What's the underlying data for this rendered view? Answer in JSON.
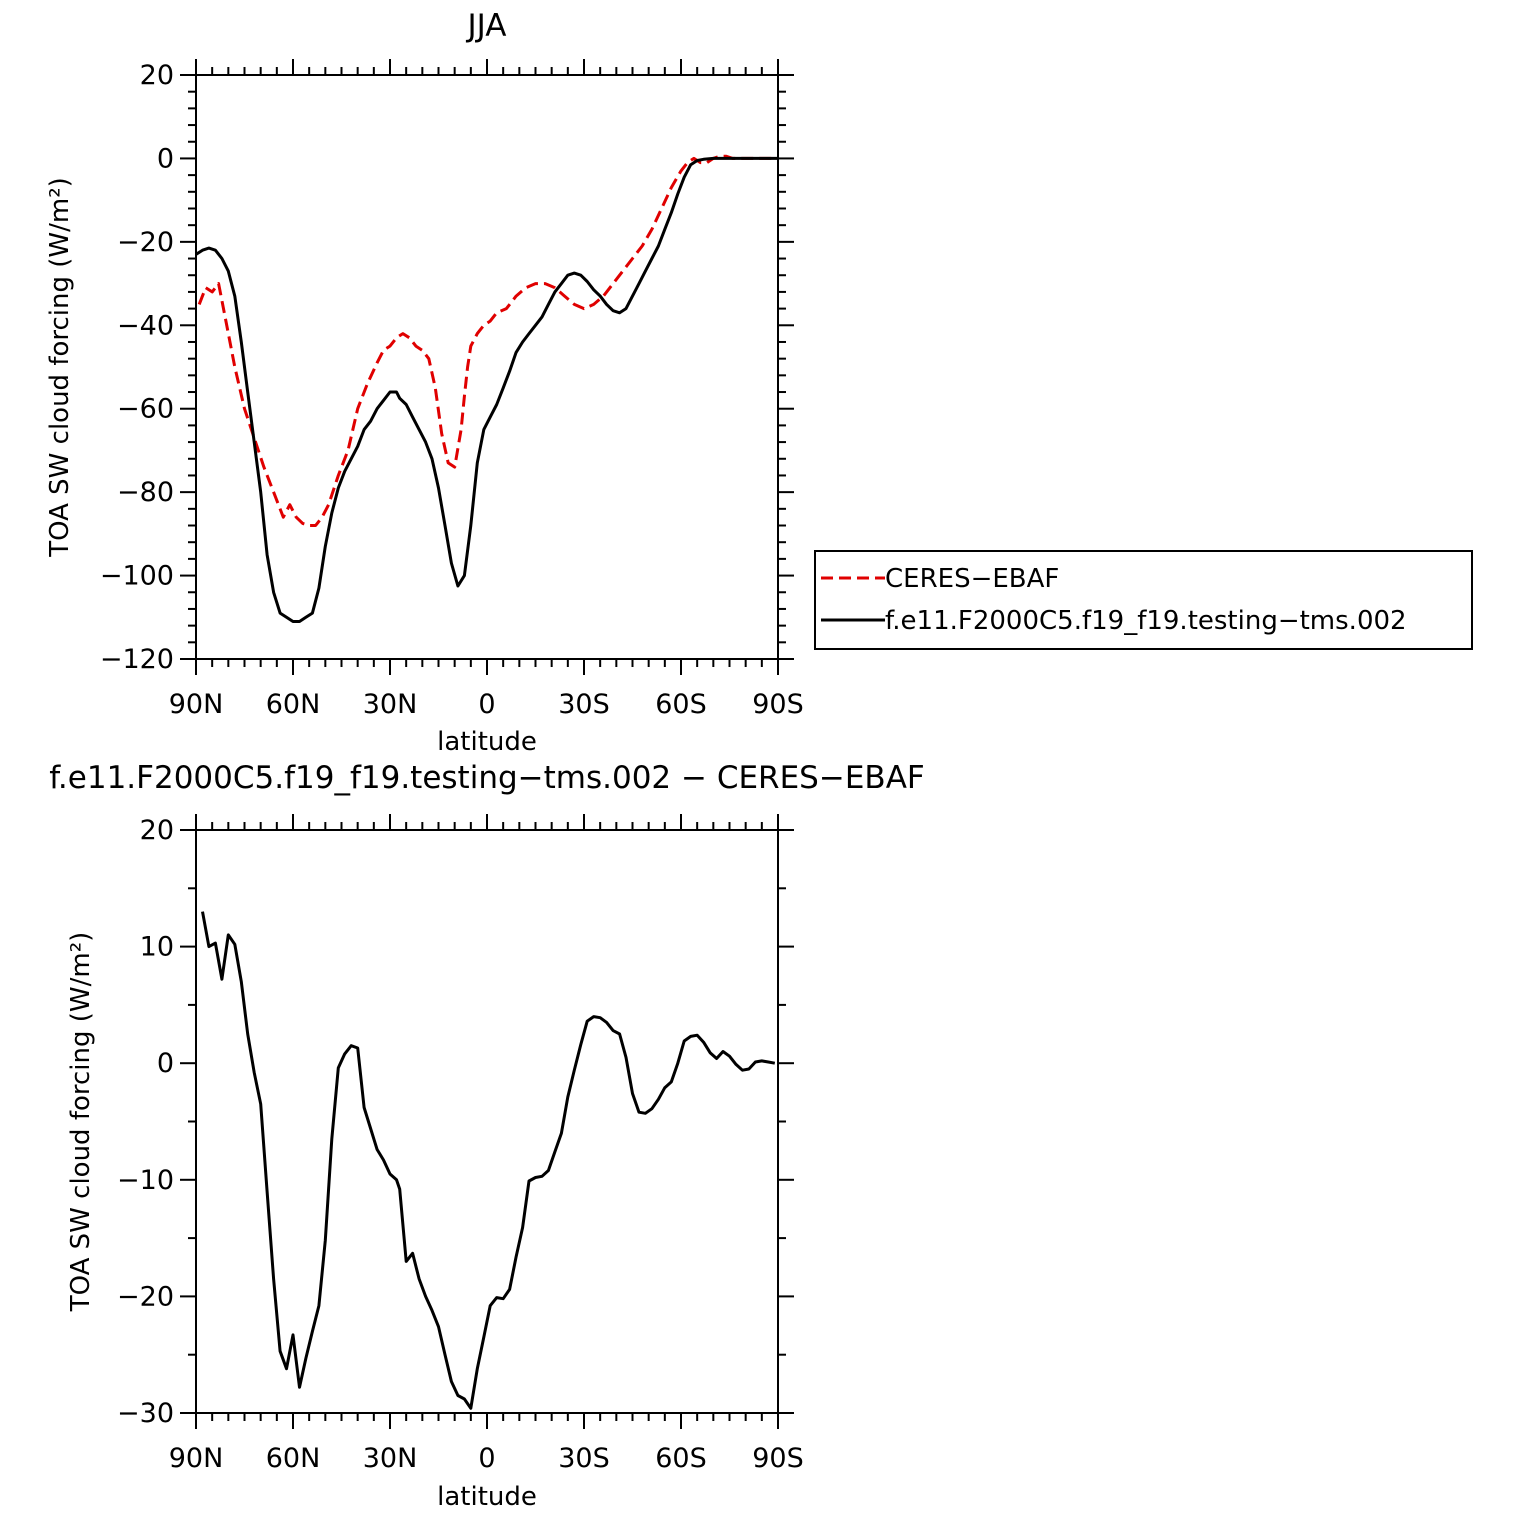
{
  "chart_data": [
    {
      "type": "line",
      "title": "JJA",
      "xlabel": "latitude",
      "ylabel": "TOA SW cloud forcing (W/m²)",
      "xlim": [
        90,
        -90
      ],
      "ylim": [
        -120,
        20
      ],
      "x_ticks": [
        90,
        60,
        30,
        0,
        -30,
        -60,
        -90
      ],
      "x_tick_labels": [
        "90N",
        "60N",
        "30N",
        "0",
        "30S",
        "60S",
        "90S"
      ],
      "y_ticks": [
        20,
        0,
        -20,
        -40,
        -60,
        -80,
        -100,
        -120
      ],
      "y_tick_labels": [
        "20",
        "0",
        "−20",
        "−40",
        "−60",
        "−80",
        "−100",
        "−120"
      ],
      "legend_position": "right",
      "series": [
        {
          "name": "CERES−EBAF",
          "color": "#e00000",
          "dash": "dashed",
          "x": [
            89,
            87,
            85,
            83,
            81,
            78,
            75,
            72,
            69,
            66,
            63,
            61,
            59,
            57,
            55,
            53,
            51,
            49,
            46,
            43,
            40,
            37,
            34,
            32,
            30,
            28,
            26,
            24,
            22,
            20,
            18,
            16,
            14,
            12,
            10,
            8,
            7,
            6,
            5,
            3,
            1,
            -1,
            -3,
            -6,
            -9,
            -12,
            -15,
            -18,
            -21,
            -24,
            -27,
            -30,
            -33,
            -36,
            -39,
            -42,
            -45,
            -48,
            -51,
            -54,
            -57,
            -60,
            -62,
            -64,
            -66,
            -68,
            -70,
            -72,
            -74,
            -76,
            -78,
            -80,
            -84,
            -88
          ],
          "y": [
            -35,
            -31,
            -32,
            -30,
            -38,
            -50,
            -60,
            -67,
            -74,
            -80,
            -86,
            -83,
            -86,
            -87.5,
            -88,
            -88,
            -86,
            -83,
            -76,
            -70,
            -60,
            -54,
            -49,
            -46,
            -45,
            -43,
            -42,
            -43,
            -45,
            -46,
            -48,
            -55,
            -66,
            -73,
            -74,
            -65,
            -57,
            -50,
            -45,
            -42,
            -40,
            -39,
            -37,
            -36,
            -33,
            -31,
            -30,
            -30,
            -31,
            -33,
            -35,
            -36,
            -35,
            -33,
            -30,
            -27,
            -24,
            -21,
            -17,
            -12,
            -7,
            -3,
            -1,
            0,
            -1,
            -1,
            0,
            0.5,
            0.5,
            0,
            0,
            0,
            0,
            0
          ]
        },
        {
          "name": "f.e11.F2000C5.f19_f19.testing−tms.002",
          "color": "#000000",
          "dash": "solid",
          "x": [
            90,
            88,
            86,
            84,
            82,
            80,
            78,
            76,
            74,
            72,
            70,
            68,
            66,
            64,
            62,
            60,
            58,
            56,
            54,
            52,
            50,
            48,
            46,
            44,
            42,
            40,
            38,
            36,
            34,
            32,
            30,
            28,
            27,
            25,
            23,
            21,
            19,
            17,
            15,
            13,
            11,
            9,
            7,
            5,
            3,
            1,
            -1,
            -3,
            -5,
            -7,
            -9,
            -11,
            -13,
            -15,
            -17,
            -19,
            -21,
            -23,
            -25,
            -27,
            -29,
            -31,
            -33,
            -35,
            -37,
            -39,
            -41,
            -43,
            -45,
            -47,
            -49,
            -51,
            -53,
            -55,
            -57,
            -59,
            -61,
            -63,
            -65,
            -67,
            -70,
            -75,
            -80,
            -85,
            -90
          ],
          "y": [
            -23,
            -22,
            -21.5,
            -22,
            -24,
            -27,
            -33,
            -44,
            -56,
            -68,
            -80,
            -95,
            -104,
            -109,
            -110,
            -111,
            -111,
            -110,
            -109,
            -103,
            -93,
            -85,
            -79,
            -75,
            -72,
            -69,
            -65,
            -63,
            -60,
            -58,
            -56,
            -56,
            -57.5,
            -59,
            -62,
            -65,
            -68,
            -72,
            -79,
            -88,
            -97,
            -102.5,
            -100,
            -88,
            -73,
            -65,
            -62,
            -59,
            -55,
            -51,
            -46.5,
            -44,
            -42,
            -40,
            -38,
            -35,
            -32,
            -30,
            -28,
            -27.5,
            -28,
            -29.5,
            -31.5,
            -33,
            -35,
            -36.5,
            -37,
            -36,
            -33,
            -30,
            -27,
            -24,
            -21,
            -17,
            -13,
            -8.5,
            -4.5,
            -1.5,
            -0.5,
            -0.2,
            0,
            0,
            0,
            0,
            0
          ]
        }
      ]
    },
    {
      "type": "line",
      "title": "f.e11.F2000C5.f19_f19.testing−tms.002 − CERES−EBAF",
      "xlabel": "latitude",
      "ylabel": "TOA SW cloud forcing (W/m²)",
      "xlim": [
        90,
        -90
      ],
      "ylim": [
        -30,
        20
      ],
      "x_ticks": [
        90,
        60,
        30,
        0,
        -30,
        -60,
        -90
      ],
      "x_tick_labels": [
        "90N",
        "60N",
        "30N",
        "0",
        "30S",
        "60S",
        "90S"
      ],
      "y_ticks": [
        20,
        10,
        0,
        -10,
        -20,
        -30
      ],
      "y_tick_labels": [
        "20",
        "10",
        "0",
        "−10",
        "−20",
        "−30"
      ],
      "series": [
        {
          "name": "",
          "color": "#000000",
          "dash": "solid",
          "x": [
            88,
            86,
            84,
            82,
            80,
            78,
            76,
            74,
            72,
            70,
            68,
            66,
            64,
            62,
            60,
            58,
            56,
            54,
            52,
            50,
            48,
            46,
            44,
            42,
            40,
            38,
            36,
            34,
            32,
            30,
            28,
            27,
            25,
            23,
            21,
            19,
            17,
            15,
            13,
            11,
            9,
            7,
            5,
            3,
            1,
            -1,
            -3,
            -5,
            -7,
            -9,
            -11,
            -13,
            -15,
            -17,
            -19,
            -21,
            -23,
            -25,
            -27,
            -29,
            -31,
            -33,
            -35,
            -37,
            -39,
            -41,
            -43,
            -45,
            -47,
            -49,
            -51,
            -53,
            -55,
            -57,
            -59,
            -61,
            -63,
            -65,
            -67,
            -69,
            -71,
            -73,
            -75,
            -77,
            -79,
            -81,
            -83,
            -85,
            -87,
            -89
          ],
          "y": [
            13,
            10,
            10.3,
            7.2,
            11,
            10.2,
            7,
            2.5,
            -0.8,
            -3.5,
            -11,
            -18.5,
            -24.7,
            -26.2,
            -23.3,
            -27.8,
            -25.3,
            -23,
            -20.8,
            -15.2,
            -6.5,
            -0.4,
            0.8,
            1.5,
            1.3,
            -3.8,
            -5.6,
            -7.4,
            -8.3,
            -9.5,
            -10,
            -10.8,
            -17,
            -16.3,
            -18.5,
            -20,
            -21.2,
            -22.6,
            -25,
            -27.3,
            -28.5,
            -28.8,
            -29.6,
            -26.2,
            -23.5,
            -20.8,
            -20.1,
            -20.2,
            -19.4,
            -16.6,
            -14.1,
            -10.1,
            -9.8,
            -9.7,
            -9.2,
            -7.6,
            -6,
            -2.9,
            -0.6,
            1.6,
            3.6,
            4,
            3.9,
            3.5,
            2.8,
            2.5,
            0.5,
            -2.6,
            -4.2,
            -4.3,
            -3.9,
            -3.1,
            -2.1,
            -1.6,
            0,
            1.9,
            2.3,
            2.4,
            1.8,
            0.9,
            0.4,
            1,
            0.6,
            -0.1,
            -0.6,
            -0.5,
            0.1,
            0.2,
            0.1,
            0
          ]
        }
      ]
    }
  ]
}
